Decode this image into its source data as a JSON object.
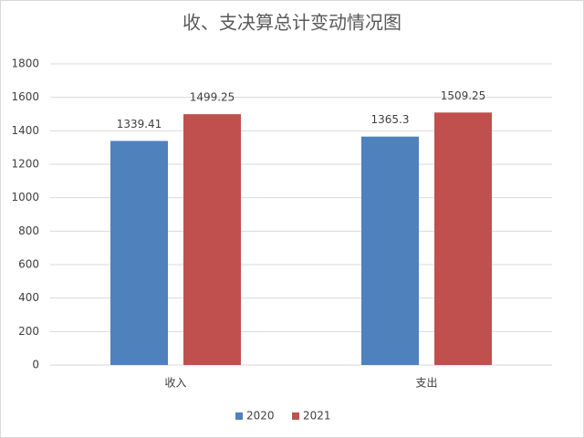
{
  "chart_data": {
    "type": "bar",
    "title": "收、支决算总计变动情况图",
    "categories": [
      "收入",
      "支出"
    ],
    "series": [
      {
        "name": "2020",
        "color": "#4f81bd",
        "values": [
          1339.41,
          1365.3
        ]
      },
      {
        "name": "2021",
        "color": "#c0504d",
        "values": [
          1499.25,
          1509.25
        ]
      }
    ],
    "ylim": [
      0,
      1800
    ],
    "yticks": [
      0,
      200,
      400,
      600,
      800,
      1000,
      1200,
      1400,
      1600,
      1800
    ],
    "grid": true,
    "legend": "bottom"
  }
}
